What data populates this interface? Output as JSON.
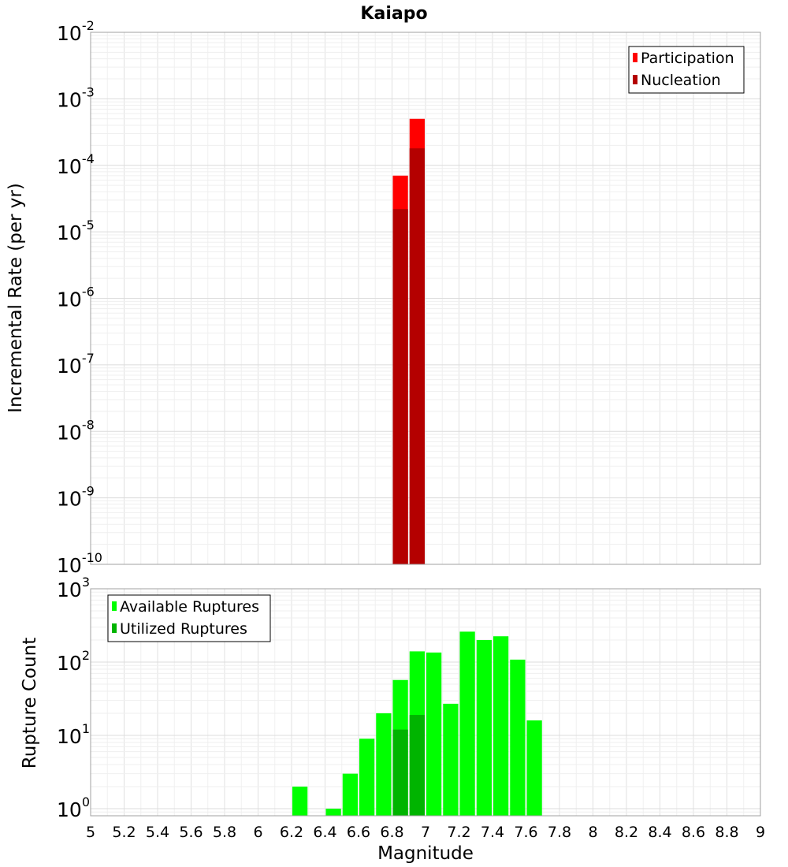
{
  "chart_data": [
    {
      "type": "bar",
      "title": "Kaiapo",
      "ylabel": "Incremental Rate (per yr)",
      "xlabel": "",
      "y_scale": "log",
      "ylim": [
        1e-10,
        0.01
      ],
      "xlim": [
        5,
        9
      ],
      "y_ticks": [
        {
          "base": "10",
          "exp": "-10",
          "value": 1e-10
        },
        {
          "base": "10",
          "exp": "-9",
          "value": 1e-09
        },
        {
          "base": "10",
          "exp": "-8",
          "value": 1e-08
        },
        {
          "base": "10",
          "exp": "-7",
          "value": 1e-07
        },
        {
          "base": "10",
          "exp": "-6",
          "value": 1e-06
        },
        {
          "base": "10",
          "exp": "-5",
          "value": 1e-05
        },
        {
          "base": "10",
          "exp": "-4",
          "value": 0.0001
        },
        {
          "base": "10",
          "exp": "-3",
          "value": 0.001
        },
        {
          "base": "10",
          "exp": "-2",
          "value": 0.01
        }
      ],
      "bin_width": 0.1,
      "grid": true,
      "legend_position": "top-right",
      "series": [
        {
          "name": "Participation",
          "color": "#ff0000",
          "points": [
            {
              "x": 6.85,
              "y": 7e-05
            },
            {
              "x": 6.95,
              "y": 0.0005
            }
          ]
        },
        {
          "name": "Nucleation",
          "color": "#b40000",
          "points": [
            {
              "x": 6.85,
              "y": 2.2e-05
            },
            {
              "x": 6.95,
              "y": 0.00018
            }
          ]
        }
      ]
    },
    {
      "type": "bar",
      "title": "",
      "ylabel": "Rupture Count",
      "xlabel": "Magnitude",
      "y_scale": "log",
      "ylim": [
        0.8,
        1000
      ],
      "xlim": [
        5,
        9
      ],
      "x_ticks": [
        "5",
        "5.2",
        "5.4",
        "5.6",
        "5.8",
        "6",
        "6.2",
        "6.4",
        "6.6",
        "6.8",
        "7",
        "7.2",
        "7.4",
        "7.6",
        "7.8",
        "8",
        "8.2",
        "8.4",
        "8.6",
        "8.8",
        "9"
      ],
      "y_ticks": [
        {
          "base": "10",
          "exp": "0",
          "value": 1
        },
        {
          "base": "10",
          "exp": "1",
          "value": 10
        },
        {
          "base": "10",
          "exp": "2",
          "value": 100
        },
        {
          "base": "10",
          "exp": "3",
          "value": 1000
        }
      ],
      "bin_width": 0.1,
      "grid": true,
      "legend_position": "top-left",
      "series": [
        {
          "name": "Available Ruptures",
          "color": "#00ff00",
          "points": [
            {
              "x": 6.25,
              "y": 2
            },
            {
              "x": 6.45,
              "y": 1
            },
            {
              "x": 6.55,
              "y": 3
            },
            {
              "x": 6.65,
              "y": 9
            },
            {
              "x": 6.75,
              "y": 20
            },
            {
              "x": 6.85,
              "y": 57
            },
            {
              "x": 6.95,
              "y": 140
            },
            {
              "x": 7.05,
              "y": 135
            },
            {
              "x": 7.15,
              "y": 27
            },
            {
              "x": 7.25,
              "y": 260
            },
            {
              "x": 7.35,
              "y": 200
            },
            {
              "x": 7.45,
              "y": 225
            },
            {
              "x": 7.55,
              "y": 108
            },
            {
              "x": 7.65,
              "y": 16
            }
          ]
        },
        {
          "name": "Utilized Ruptures",
          "color": "#00b400",
          "points": [
            {
              "x": 6.85,
              "y": 12
            },
            {
              "x": 6.95,
              "y": 19
            }
          ]
        }
      ]
    }
  ]
}
